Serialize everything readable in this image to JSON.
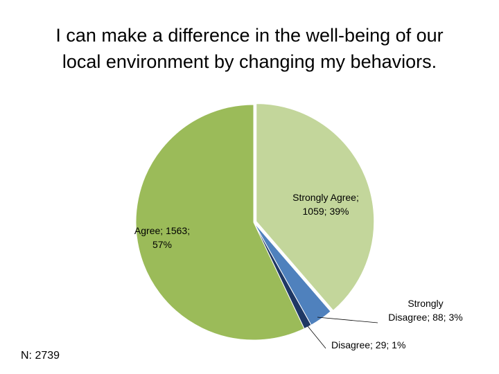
{
  "slide": {
    "title_lines": [
      "I can make a difference in the well-being of our",
      "local environment by changing my behaviors."
    ],
    "n_label": "N: 2739"
  },
  "chart_data": {
    "type": "pie",
    "title": "I can make a difference in the well-being of our local environment by changing my behaviors.",
    "start_angle_deg": 0,
    "direction": "clockwise",
    "slices": [
      {
        "name": "Strongly Agree",
        "value": 1059,
        "percent": 39,
        "color": "#c3d69b",
        "label_lines": [
          "Strongly Agree;",
          "1059; 39%"
        ]
      },
      {
        "name": "Strongly Disagree",
        "value": 88,
        "percent": 3,
        "color": "#4f81bd",
        "label_lines": [
          "Strongly",
          "Disagree; 88; 3%"
        ]
      },
      {
        "name": "Disagree",
        "value": 29,
        "percent": 1,
        "color": "#1f3864",
        "label_lines": [
          "Disagree; 29; 1%"
        ]
      },
      {
        "name": "Agree",
        "value": 1563,
        "percent": 57,
        "color": "#9bbb59",
        "label_lines": [
          "Agree; 1563;",
          "57%"
        ]
      }
    ]
  }
}
